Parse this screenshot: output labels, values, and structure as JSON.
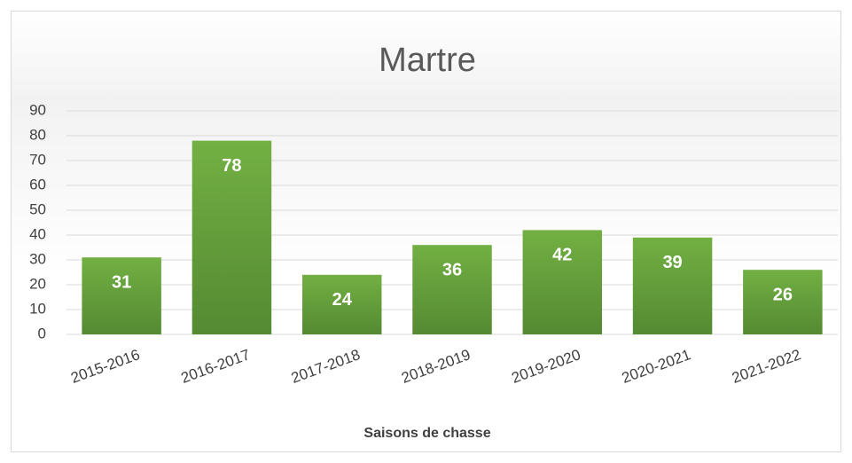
{
  "chart_data": {
    "type": "bar",
    "title": "Martre",
    "x_label": "Saisons de chasse",
    "categories": [
      "2015-2016",
      "2016-2017",
      "2017-2018",
      "2018-2019",
      "2019-2020",
      "2020-2021",
      "2021-2022"
    ],
    "values": [
      31,
      78,
      24,
      36,
      42,
      39,
      26
    ],
    "color": "#64a23f",
    "ylim": [
      0,
      90
    ],
    "yticks": [
      0,
      10,
      20,
      30,
      40,
      50,
      60,
      70,
      80,
      90
    ],
    "grid": true,
    "data_labels": true
  }
}
